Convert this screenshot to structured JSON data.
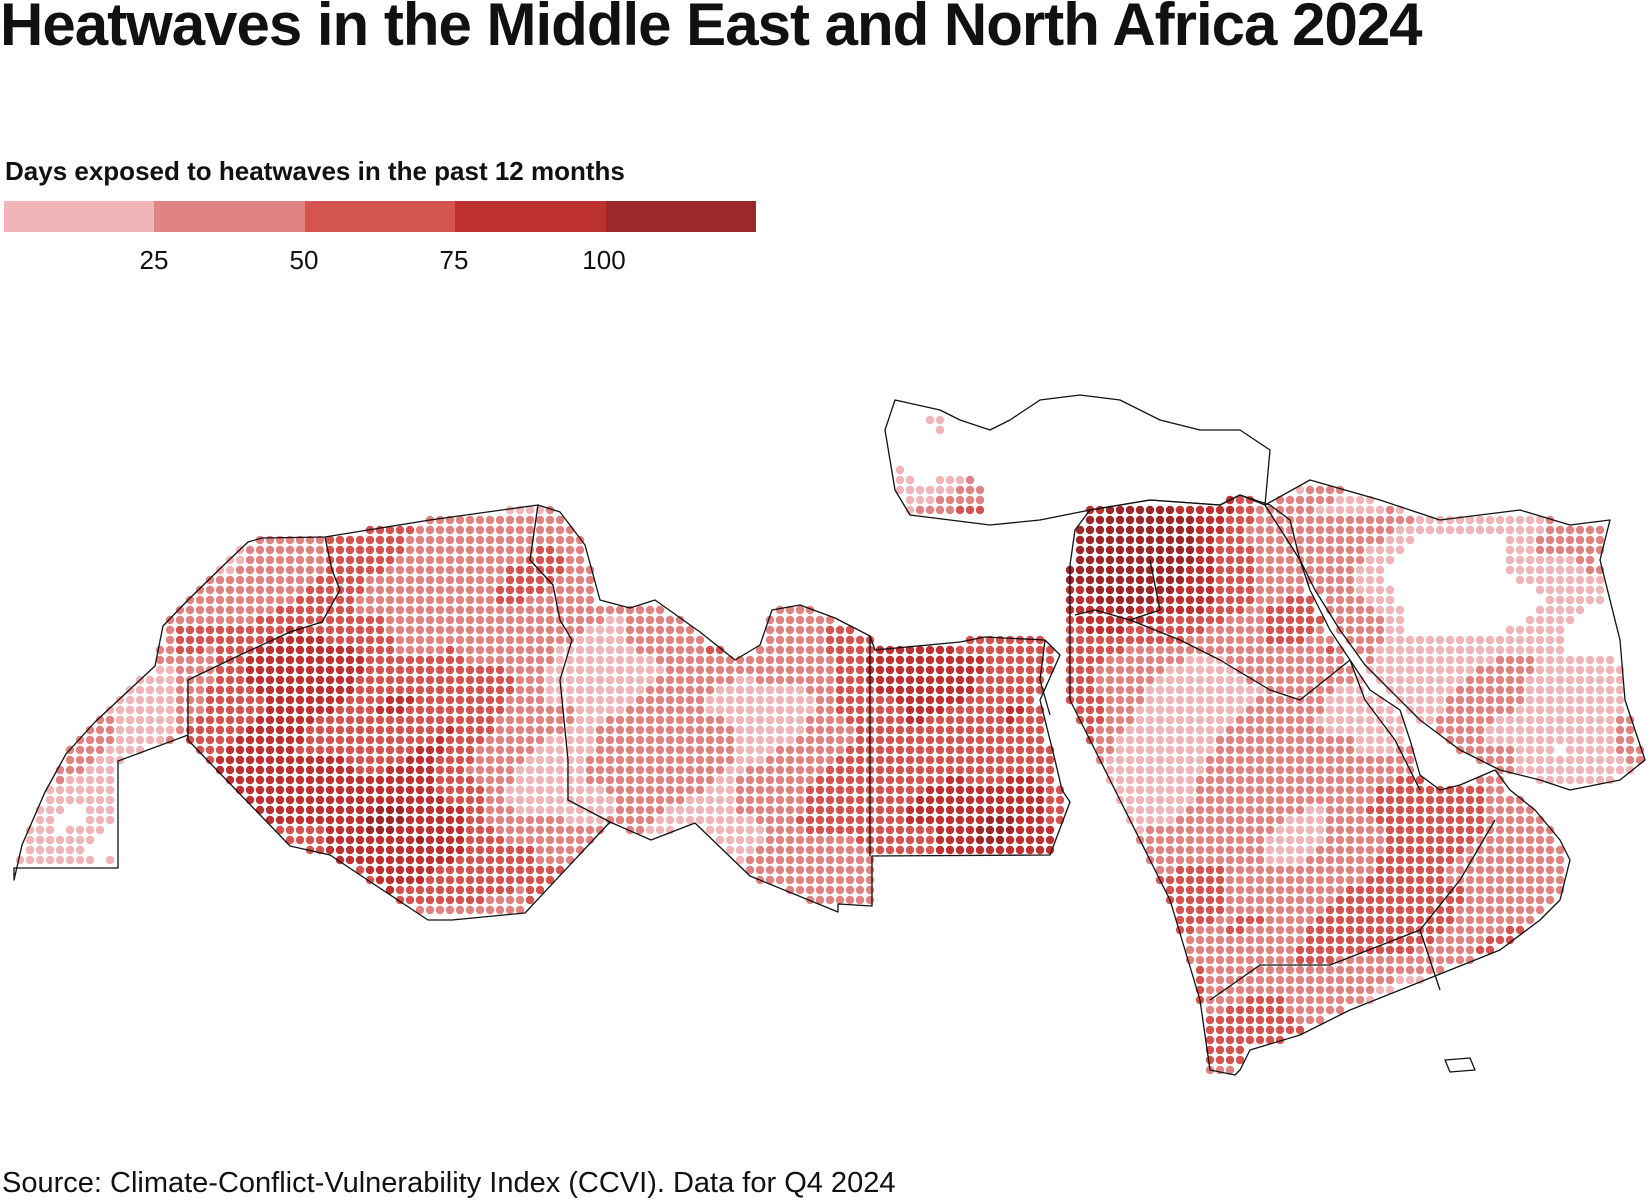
{
  "title": "Heatwaves in the Middle East and North Africa 2024",
  "legend": {
    "title": "Days exposed to heatwaves in the past 12 months",
    "ticks": [
      "25",
      "50",
      "75",
      "100"
    ],
    "colors": [
      "#f0b5b8",
      "#e08383",
      "#d45452",
      "#bd3133",
      "#9c282c"
    ]
  },
  "source": "Source: Climate-Conflict-Vulnerability Index (CCVI). Data for Q4 2024"
}
